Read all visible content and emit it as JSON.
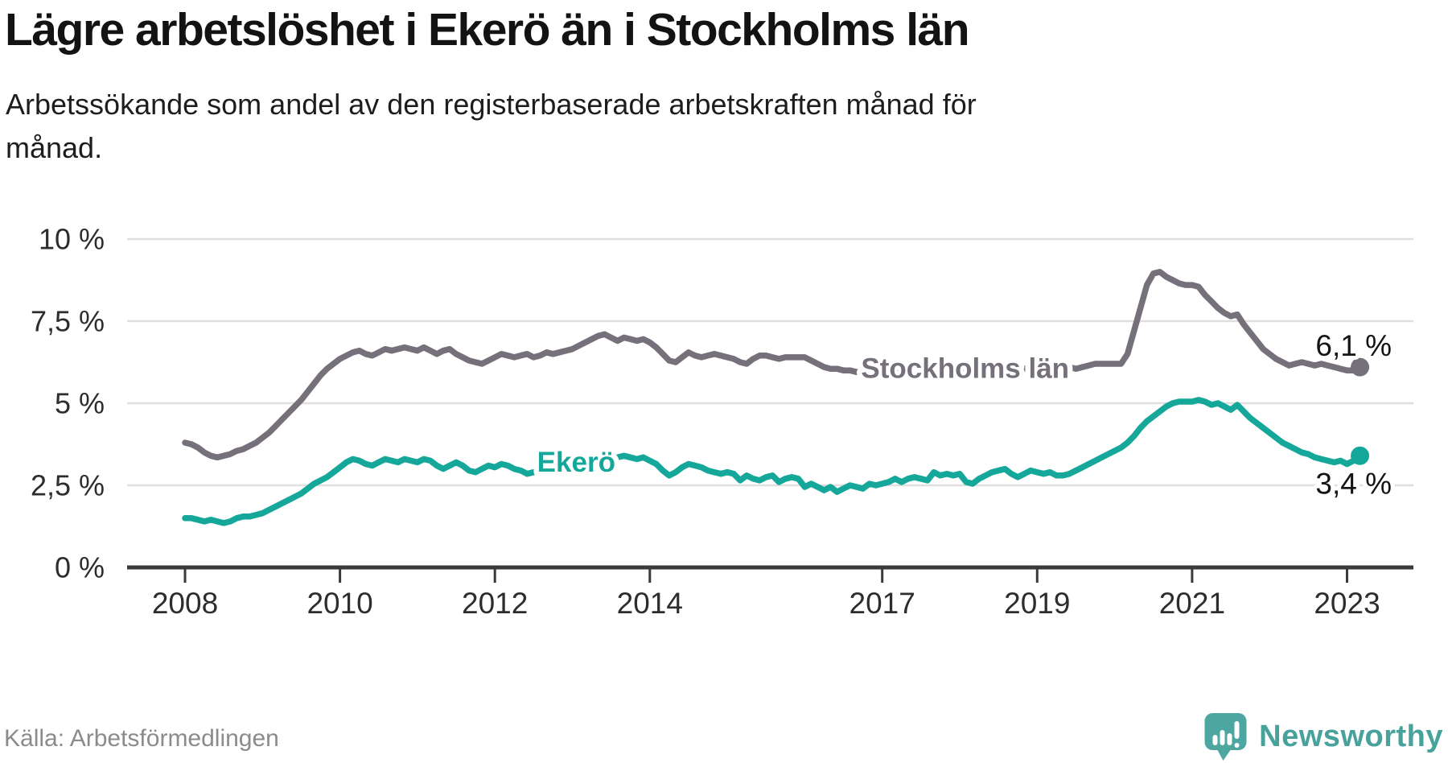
{
  "header": {
    "title": "Lägre arbetslöshet i Ekerö än i Stockholms län",
    "subtitle_lines": [
      "Arbetssökande som andel av den registerbaserade arbetskraften månad för",
      "månad."
    ]
  },
  "footer": {
    "source": "Källa: Arbetsförmedlingen",
    "brand": "Newsworthy",
    "brand_color": "#47a29c"
  },
  "chart_data": {
    "type": "line",
    "title": "Lägre arbetslöshet i Ekerö än i Stockholms län",
    "subtitle": "Arbetssökande som andel av den registerbaserade arbetskraften månad för månad.",
    "xlabel": "",
    "ylabel": "",
    "ylim": [
      0,
      10
    ],
    "grid": true,
    "legend_position": "inline",
    "x_unit": "month",
    "x_start": {
      "year": 2008,
      "month": 1
    },
    "x_end": {
      "year": 2023,
      "month": 3
    },
    "yticks": [
      {
        "value": 10,
        "label": "10 %"
      },
      {
        "value": 7.5,
        "label": "7,5 %"
      },
      {
        "value": 5,
        "label": "5 %"
      },
      {
        "value": 2.5,
        "label": "2,5 %"
      },
      {
        "value": 0,
        "label": "0 %"
      }
    ],
    "xticks": [
      {
        "value": 2008,
        "label": "2008"
      },
      {
        "value": 2010,
        "label": "2010"
      },
      {
        "value": 2012,
        "label": "2012"
      },
      {
        "value": 2014,
        "label": "2014"
      },
      {
        "value": 2017,
        "label": "2017"
      },
      {
        "value": 2019,
        "label": "2019"
      },
      {
        "value": 2021,
        "label": "2021"
      },
      {
        "value": 2023,
        "label": "2023"
      }
    ],
    "series": [
      {
        "name": "Stockholms län",
        "slug": "stockholms-lan",
        "color": "#75707a",
        "end_value": 6.1,
        "end_label": "6,1 %",
        "end_label_side": "above",
        "inline_label": {
          "x": 2018.07,
          "y": 6.05
        },
        "values": [
          3.8,
          3.75,
          3.65,
          3.5,
          3.4,
          3.35,
          3.4,
          3.45,
          3.55,
          3.6,
          3.7,
          3.8,
          3.95,
          4.1,
          4.3,
          4.5,
          4.7,
          4.9,
          5.1,
          5.35,
          5.6,
          5.85,
          6.05,
          6.2,
          6.35,
          6.45,
          6.55,
          6.6,
          6.5,
          6.45,
          6.55,
          6.65,
          6.6,
          6.65,
          6.7,
          6.65,
          6.6,
          6.7,
          6.6,
          6.5,
          6.6,
          6.65,
          6.5,
          6.4,
          6.3,
          6.25,
          6.2,
          6.3,
          6.4,
          6.5,
          6.45,
          6.4,
          6.45,
          6.5,
          6.4,
          6.45,
          6.55,
          6.5,
          6.55,
          6.6,
          6.65,
          6.75,
          6.85,
          6.95,
          7.05,
          7.1,
          7.0,
          6.9,
          7.0,
          6.95,
          6.9,
          6.95,
          6.85,
          6.7,
          6.5,
          6.3,
          6.25,
          6.4,
          6.55,
          6.45,
          6.4,
          6.45,
          6.5,
          6.45,
          6.4,
          6.35,
          6.25,
          6.2,
          6.35,
          6.45,
          6.45,
          6.4,
          6.35,
          6.4,
          6.4,
          6.4,
          6.4,
          6.3,
          6.2,
          6.1,
          6.05,
          6.05,
          6.0,
          6.0,
          5.95,
          5.95,
          6.0,
          6.0,
          5.95,
          6.0,
          6.05,
          6.0,
          5.95,
          6.0,
          6.05,
          6.0,
          5.95,
          6.0,
          6.05,
          6.0,
          5.95,
          5.9,
          5.95,
          6.0,
          6.05,
          6.0,
          5.95,
          6.0,
          6.05,
          6.0,
          6.05,
          6.1,
          6.05,
          6.1,
          6.05,
          6.1,
          6.05,
          6.1,
          6.05,
          6.1,
          6.15,
          6.2,
          6.2,
          6.2,
          6.2,
          6.2,
          6.5,
          7.2,
          7.9,
          8.6,
          8.95,
          9.0,
          8.85,
          8.75,
          8.65,
          8.6,
          8.6,
          8.55,
          8.3,
          8.1,
          7.9,
          7.75,
          7.65,
          7.7,
          7.4,
          7.15,
          6.9,
          6.65,
          6.5,
          6.35,
          6.25,
          6.15,
          6.2,
          6.25,
          6.2,
          6.15,
          6.2,
          6.15,
          6.1,
          6.05,
          6.0,
          6.0,
          6.1
        ]
      },
      {
        "name": "Ekerö",
        "slug": "ekero",
        "color": "#14a79a",
        "end_value": 3.4,
        "end_label": "3,4 %",
        "end_label_side": "below",
        "inline_label": {
          "x": 2013.05,
          "y": 3.2
        },
        "values": [
          1.5,
          1.5,
          1.45,
          1.4,
          1.45,
          1.4,
          1.35,
          1.4,
          1.5,
          1.55,
          1.55,
          1.6,
          1.65,
          1.75,
          1.85,
          1.95,
          2.05,
          2.15,
          2.25,
          2.4,
          2.55,
          2.65,
          2.75,
          2.9,
          3.05,
          3.2,
          3.3,
          3.25,
          3.15,
          3.1,
          3.2,
          3.3,
          3.25,
          3.2,
          3.3,
          3.25,
          3.2,
          3.3,
          3.25,
          3.1,
          3.0,
          3.1,
          3.2,
          3.1,
          2.95,
          2.9,
          3.0,
          3.1,
          3.05,
          3.15,
          3.1,
          3.0,
          2.95,
          2.85,
          2.9,
          3.0,
          3.1,
          3.05,
          3.15,
          3.2,
          3.25,
          3.35,
          3.4,
          3.35,
          3.3,
          3.35,
          3.3,
          3.35,
          3.4,
          3.35,
          3.3,
          3.35,
          3.25,
          3.15,
          2.95,
          2.8,
          2.9,
          3.05,
          3.15,
          3.1,
          3.05,
          2.95,
          2.9,
          2.85,
          2.9,
          2.85,
          2.65,
          2.8,
          2.7,
          2.65,
          2.75,
          2.8,
          2.6,
          2.7,
          2.75,
          2.7,
          2.45,
          2.55,
          2.45,
          2.35,
          2.45,
          2.3,
          2.4,
          2.5,
          2.45,
          2.4,
          2.55,
          2.5,
          2.55,
          2.6,
          2.7,
          2.6,
          2.7,
          2.75,
          2.7,
          2.65,
          2.9,
          2.8,
          2.85,
          2.8,
          2.85,
          2.6,
          2.55,
          2.7,
          2.8,
          2.9,
          2.95,
          3.0,
          2.85,
          2.75,
          2.85,
          2.95,
          2.9,
          2.85,
          2.9,
          2.8,
          2.8,
          2.85,
          2.95,
          3.05,
          3.15,
          3.25,
          3.35,
          3.45,
          3.55,
          3.65,
          3.8,
          4.0,
          4.25,
          4.45,
          4.6,
          4.75,
          4.9,
          5.0,
          5.05,
          5.05,
          5.05,
          5.1,
          5.05,
          4.95,
          5.0,
          4.9,
          4.8,
          4.95,
          4.75,
          4.55,
          4.4,
          4.25,
          4.1,
          3.95,
          3.8,
          3.7,
          3.6,
          3.5,
          3.45,
          3.35,
          3.3,
          3.25,
          3.2,
          3.25,
          3.15,
          3.25,
          3.4
        ]
      }
    ]
  }
}
